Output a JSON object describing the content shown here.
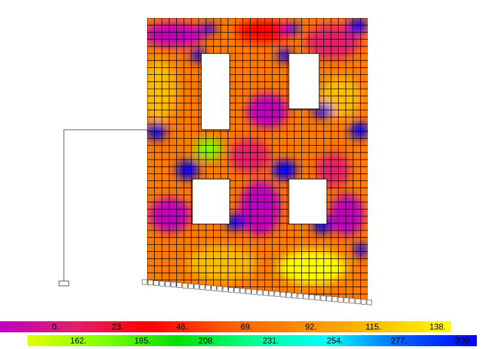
{
  "legend": {
    "rows": [
      {
        "items": [
          {
            "label": "0.",
            "color": "#c000c0"
          },
          {
            "label": "23.",
            "color": "#e0206a"
          },
          {
            "label": "46.",
            "color": "#ff0000"
          },
          {
            "label": "69.",
            "color": "#ff5a00"
          },
          {
            "label": "92.",
            "color": "#ff8c00"
          },
          {
            "label": "115.",
            "color": "#ffbe00"
          },
          {
            "label": "138.",
            "color": "#ffff00"
          }
        ]
      },
      {
        "items": [
          {
            "label": "162.",
            "color": "#e0ff00"
          },
          {
            "label": "185.",
            "color": "#80ff00"
          },
          {
            "label": "208.",
            "color": "#00e000"
          },
          {
            "label": "231.",
            "color": "#00ff90"
          },
          {
            "label": "254.",
            "color": "#00ffff"
          },
          {
            "label": "277.",
            "color": "#0060ff"
          },
          {
            "label": "300.",
            "color": "#0000ff"
          }
        ]
      }
    ]
  }
}
